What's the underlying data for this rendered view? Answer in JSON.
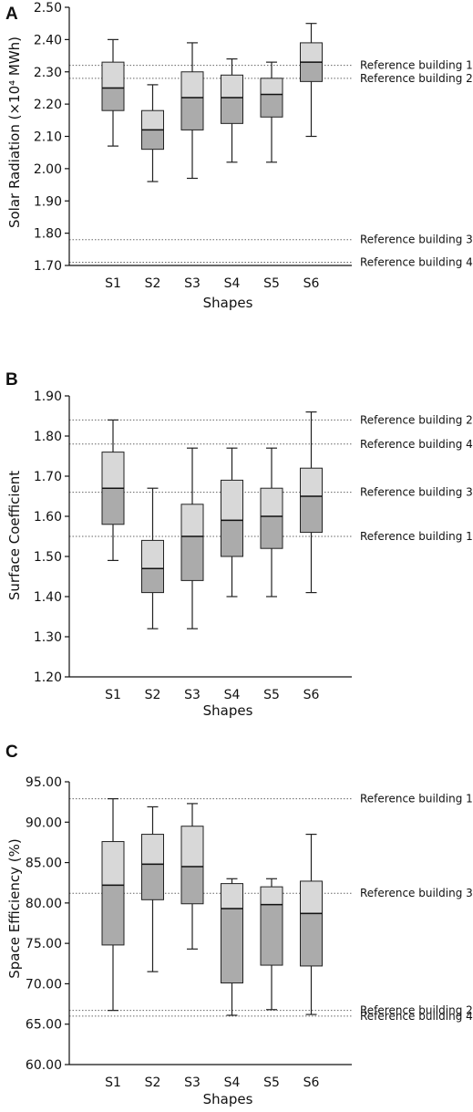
{
  "chart_data": [
    {
      "panel": "A",
      "type": "box",
      "xlabel": "Shapes",
      "ylabel": "Solar Radiation (×10⁴ MWh)",
      "categories": [
        "S1",
        "S2",
        "S3",
        "S4",
        "S5",
        "S6"
      ],
      "ylim": [
        1.7,
        2.5
      ],
      "yticks": [
        "1.70",
        "1.80",
        "1.90",
        "2.00",
        "2.10",
        "2.20",
        "2.30",
        "2.40",
        "2.50"
      ],
      "boxes": [
        {
          "min": 2.07,
          "q1": 2.18,
          "median": 2.25,
          "q3": 2.33,
          "max": 2.4
        },
        {
          "min": 1.96,
          "q1": 2.06,
          "median": 2.12,
          "q3": 2.18,
          "max": 2.26
        },
        {
          "min": 1.97,
          "q1": 2.12,
          "median": 2.22,
          "q3": 2.3,
          "max": 2.39
        },
        {
          "min": 2.02,
          "q1": 2.14,
          "median": 2.22,
          "q3": 2.29,
          "max": 2.34
        },
        {
          "min": 2.02,
          "q1": 2.16,
          "median": 2.23,
          "q3": 2.28,
          "max": 2.33
        },
        {
          "min": 2.1,
          "q1": 2.27,
          "median": 2.33,
          "q3": 2.39,
          "max": 2.45
        }
      ],
      "reference_lines": [
        {
          "label": "Reference building 1",
          "value": 2.32
        },
        {
          "label": "Reference building 2",
          "value": 2.28
        },
        {
          "label": "Reference building 3",
          "value": 1.78
        },
        {
          "label": "Reference building 4",
          "value": 1.71
        }
      ]
    },
    {
      "panel": "B",
      "type": "box",
      "xlabel": "Shapes",
      "ylabel": "Surface Coefficient",
      "categories": [
        "S1",
        "S2",
        "S3",
        "S4",
        "S5",
        "S6"
      ],
      "ylim": [
        1.2,
        1.9
      ],
      "yticks": [
        "1.20",
        "1.30",
        "1.40",
        "1.50",
        "1.60",
        "1.70",
        "1.80",
        "1.90"
      ],
      "boxes": [
        {
          "min": 1.49,
          "q1": 1.58,
          "median": 1.67,
          "q3": 1.76,
          "max": 1.84
        },
        {
          "min": 1.32,
          "q1": 1.41,
          "median": 1.47,
          "q3": 1.54,
          "max": 1.67
        },
        {
          "min": 1.32,
          "q1": 1.44,
          "median": 1.55,
          "q3": 1.63,
          "max": 1.77
        },
        {
          "min": 1.4,
          "q1": 1.5,
          "median": 1.59,
          "q3": 1.69,
          "max": 1.77
        },
        {
          "min": 1.4,
          "q1": 1.52,
          "median": 1.6,
          "q3": 1.67,
          "max": 1.77
        },
        {
          "min": 1.41,
          "q1": 1.56,
          "median": 1.65,
          "q3": 1.72,
          "max": 1.86
        }
      ],
      "reference_lines": [
        {
          "label": "Reference building 2",
          "value": 1.84
        },
        {
          "label": "Reference building 4",
          "value": 1.78
        },
        {
          "label": "Reference building 3",
          "value": 1.66
        },
        {
          "label": "Reference building 1",
          "value": 1.55
        }
      ]
    },
    {
      "panel": "C",
      "type": "box",
      "xlabel": "Shapes",
      "ylabel": "Space Efficiency (%)",
      "categories": [
        "S1",
        "S2",
        "S3",
        "S4",
        "S5",
        "S6"
      ],
      "ylim": [
        60.0,
        95.0
      ],
      "yticks": [
        "60.00",
        "65.00",
        "70.00",
        "75.00",
        "80.00",
        "85.00",
        "90.00",
        "95.00"
      ],
      "boxes": [
        {
          "min": 66.7,
          "q1": 74.8,
          "median": 82.2,
          "q3": 87.6,
          "max": 92.9
        },
        {
          "min": 71.5,
          "q1": 80.4,
          "median": 84.8,
          "q3": 88.5,
          "max": 91.9
        },
        {
          "min": 74.3,
          "q1": 79.9,
          "median": 84.5,
          "q3": 89.5,
          "max": 92.3
        },
        {
          "min": 66.1,
          "q1": 70.1,
          "median": 79.3,
          "q3": 82.4,
          "max": 83.0
        },
        {
          "min": 66.8,
          "q1": 72.3,
          "median": 79.8,
          "q3": 82.0,
          "max": 83.0
        },
        {
          "min": 66.2,
          "q1": 72.2,
          "median": 78.7,
          "q3": 82.7,
          "max": 88.5
        }
      ],
      "reference_lines": [
        {
          "label": "Reference building 1",
          "value": 92.9
        },
        {
          "label": "Reference building 3",
          "value": 81.2
        },
        {
          "label": "Reference building 2",
          "value": 66.7
        },
        {
          "label": "Reference building 4",
          "value": 66.0
        }
      ]
    }
  ],
  "colors": {
    "upper_box": "#d8d8d8",
    "lower_box": "#ababab",
    "median": "#111111",
    "whisker": "#222222",
    "reference_line": "#666666",
    "axis": "#111111"
  }
}
